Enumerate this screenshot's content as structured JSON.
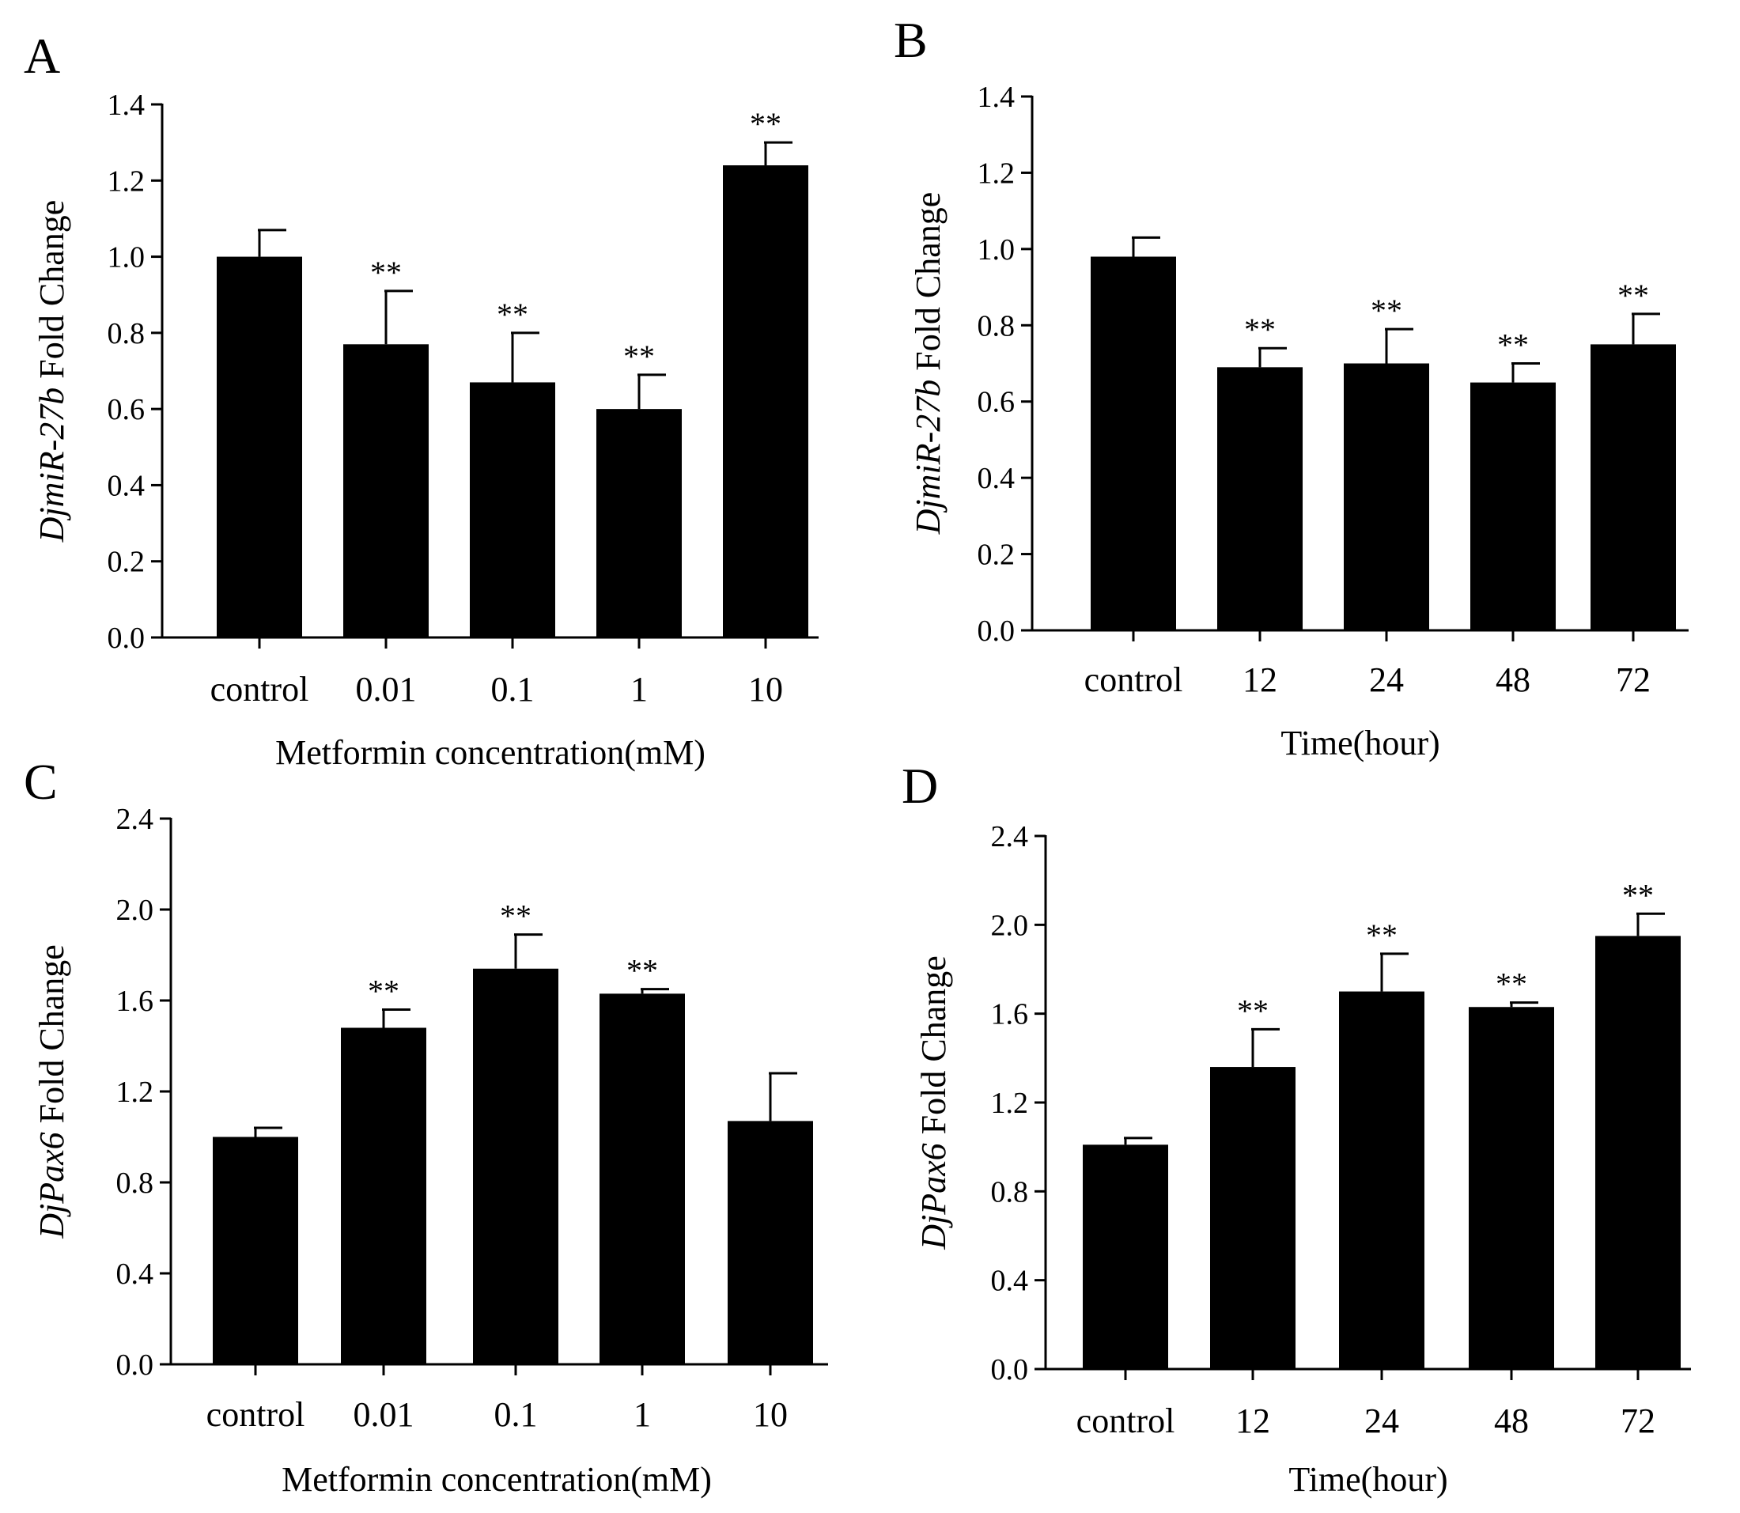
{
  "figure": {
    "panels": [
      "A",
      "B",
      "C",
      "D"
    ]
  },
  "chart_data": [
    {
      "panel": "A",
      "type": "bar",
      "ylabel_italic": "DjmiR-27b",
      "ylabel_rest": " Fold Change",
      "xlabel": "Metformin concentration(mM)",
      "categories": [
        "control",
        "0.01",
        "0.1",
        "1",
        "10"
      ],
      "values": [
        1.0,
        0.77,
        0.67,
        0.6,
        1.24
      ],
      "errors": [
        0.07,
        0.14,
        0.13,
        0.09,
        0.06
      ],
      "significance": [
        "",
        "**",
        "**",
        "**",
        "**"
      ],
      "ylim": [
        0,
        1.4
      ],
      "yticks": [
        "0.0",
        "0.2",
        "0.4",
        "0.6",
        "0.8",
        "1.0",
        "1.2",
        "1.4"
      ],
      "bar_color": "#000000"
    },
    {
      "panel": "B",
      "type": "bar",
      "ylabel_italic": "DjmiR-27b",
      "ylabel_rest": " Fold Change",
      "xlabel": "Time(hour)",
      "categories": [
        "control",
        "12",
        "24",
        "48",
        "72"
      ],
      "values": [
        0.98,
        0.69,
        0.7,
        0.65,
        0.75
      ],
      "errors": [
        0.05,
        0.05,
        0.09,
        0.05,
        0.08
      ],
      "significance": [
        "",
        "**",
        "**",
        "**",
        "**"
      ],
      "ylim": [
        0,
        1.4
      ],
      "yticks": [
        "0.0",
        "0.2",
        "0.4",
        "0.6",
        "0.8",
        "1.0",
        "1.2",
        "1.4"
      ],
      "bar_color": "#000000"
    },
    {
      "panel": "C",
      "type": "bar",
      "ylabel_italic": "DjPax6",
      "ylabel_rest": " Fold Change",
      "xlabel": "Metformin concentration(mM)",
      "categories": [
        "control",
        "0.01",
        "0.1",
        "1",
        "10"
      ],
      "values": [
        1.0,
        1.48,
        1.74,
        1.63,
        1.07
      ],
      "errors": [
        0.04,
        0.08,
        0.15,
        0.02,
        0.21
      ],
      "significance": [
        "",
        "**",
        "**",
        "**",
        ""
      ],
      "ylim": [
        0,
        2.4
      ],
      "yticks": [
        "0.0",
        "0.4",
        "0.8",
        "1.2",
        "1.6",
        "2.0",
        "2.4"
      ],
      "bar_color": "#000000"
    },
    {
      "panel": "D",
      "type": "bar",
      "ylabel_italic": "DjPax6",
      "ylabel_rest": " Fold Change",
      "xlabel": "Time(hour)",
      "categories": [
        "control",
        "12",
        "24",
        "48",
        "72"
      ],
      "values": [
        1.01,
        1.36,
        1.7,
        1.63,
        1.95
      ],
      "errors": [
        0.03,
        0.17,
        0.17,
        0.02,
        0.1
      ],
      "significance": [
        "",
        "**",
        "**",
        "**",
        "**"
      ],
      "ylim": [
        0,
        2.4
      ],
      "yticks": [
        "0.0",
        "0.4",
        "0.8",
        "1.2",
        "1.6",
        "2.0",
        "2.4"
      ],
      "bar_color": "#000000"
    }
  ]
}
